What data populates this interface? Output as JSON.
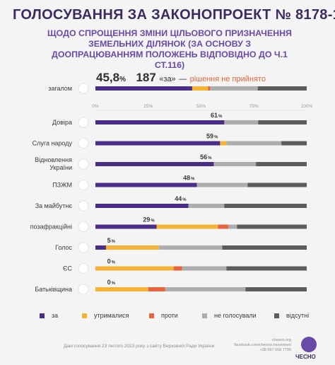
{
  "title": "ГОЛОСУВАННЯ ЗА ЗАКОНОПРОЕКТ № 8178-1",
  "subtitle": "ЩОДО СПРОЩЕННЯ ЗМІНИ ЦІЛЬОВОГО ПРИЗНАЧЕННЯ ЗЕМЕЛЬНИХ ДІЛЯНОК (ЗА ОСНОВУ З ДООПРАЦЮВАННЯМ ПОЛОЖЕНЬ ВІДПОВІДНО ДО Ч.1 СТ.116)",
  "headline": {
    "percent": "45,8",
    "percent_sign": "%",
    "count": "187",
    "count_label": "«за»",
    "dash": "—",
    "result": "рішення не прийнято"
  },
  "legend": [
    {
      "label": "за",
      "color": "#4a2d86"
    },
    {
      "label": "утрималися",
      "color": "#f5b335"
    },
    {
      "label": "проти",
      "color": "#e8643c"
    },
    {
      "label": "не голосували",
      "color": "#adadad"
    },
    {
      "label": "відсутні",
      "color": "#5c5c5c"
    }
  ],
  "footer": {
    "source": "Дані голосування 23 лютого 2023 року з сайту Верховної Ради України",
    "links": [
      "chesno.org",
      "facebook.com/chesno.movement",
      "+38 067 658 7799"
    ],
    "brand": "ЧЕСНО"
  },
  "chart_data": {
    "type": "bar",
    "orientation": "horizontal",
    "stacked": true,
    "xlim": [
      0,
      100
    ],
    "ticks": [
      "0%",
      "25%",
      "50%",
      "75%",
      "100%"
    ],
    "series_order": [
      "за",
      "утрималися",
      "проти",
      "не голосували",
      "відсутні"
    ],
    "total": {
      "label": "загалом",
      "icon": "parliament-icon",
      "values": [
        45.8,
        7.5,
        1.0,
        22.5,
        23.2
      ]
    },
    "parties": [
      {
        "label": "Довіра",
        "icon": "dovira-logo-icon",
        "pct_label": "61",
        "values": [
          61,
          0,
          0,
          16,
          23
        ]
      },
      {
        "label": "Слуга народу",
        "icon": "sluha-narodu-logo-icon",
        "pct_label": "59",
        "values": [
          59,
          3,
          0,
          26,
          12
        ]
      },
      {
        "label": "Відновлення України",
        "icon": "vidnovlennia-logo-icon",
        "pct_label": "56",
        "values": [
          56,
          0,
          0,
          20,
          24
        ]
      },
      {
        "label": "ПЗЖМ",
        "icon": "pzzhm-logo-icon",
        "pct_label": "48",
        "values": [
          48,
          0,
          0,
          24,
          28
        ]
      },
      {
        "label": "За майбутнє",
        "icon": "za-maibutnie-logo-icon",
        "pct_label": "44",
        "values": [
          44,
          0,
          0,
          17,
          39
        ]
      },
      {
        "label": "позафракційні",
        "icon": "person-icon",
        "pct_label": "29",
        "values": [
          29,
          29,
          5,
          4,
          33
        ]
      },
      {
        "label": "Голос",
        "icon": "holos-logo-icon",
        "pct_label": "5",
        "values": [
          5,
          25,
          0,
          30,
          40
        ]
      },
      {
        "label": "ЄС",
        "icon": "yes-logo-icon",
        "pct_label": "0",
        "values": [
          0,
          37,
          4,
          21,
          38
        ]
      },
      {
        "label": "Батьківщина",
        "icon": "batkivshchyna-logo-icon",
        "pct_label": "0",
        "values": [
          0,
          25,
          8,
          38,
          29
        ]
      }
    ]
  }
}
